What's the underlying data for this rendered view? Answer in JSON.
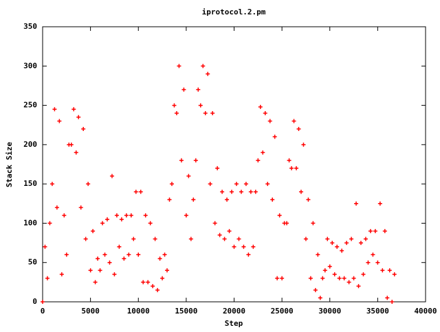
{
  "chart_data": {
    "type": "scatter",
    "title": "iprotocol.2.pm",
    "x_label": "Step",
    "y_label": "Stack Size",
    "xlim": [
      0,
      40000
    ],
    "ylim": [
      0,
      350
    ],
    "xticks": [
      0,
      5000,
      10000,
      15000,
      20000,
      25000,
      30000,
      35000,
      40000
    ],
    "yticks": [
      0,
      50,
      100,
      150,
      200,
      250,
      300,
      350
    ],
    "color": "#ff0000",
    "x": [
      0,
      250,
      500,
      750,
      1000,
      1250,
      1500,
      1750,
      2000,
      2250,
      2500,
      2750,
      3000,
      3250,
      3500,
      3750,
      4000,
      4250,
      4500,
      4750,
      5000,
      5250,
      5500,
      5750,
      6000,
      6250,
      6500,
      6750,
      7000,
      7250,
      7500,
      7750,
      8000,
      8250,
      8500,
      8750,
      9000,
      9250,
      9500,
      9750,
      10000,
      10250,
      10500,
      10750,
      11000,
      11250,
      11500,
      11750,
      12000,
      12250,
      12500,
      12750,
      13000,
      13250,
      13500,
      13750,
      14000,
      14250,
      14500,
      14750,
      15000,
      15250,
      15500,
      15750,
      16000,
      16250,
      16500,
      16750,
      17000,
      17250,
      17500,
      17750,
      18000,
      18250,
      18500,
      18750,
      19000,
      19250,
      19500,
      19750,
      20000,
      20250,
      20500,
      20750,
      21000,
      21250,
      21500,
      21750,
      22000,
      22250,
      22500,
      22750,
      23000,
      23250,
      23500,
      23750,
      24000,
      24250,
      24500,
      24750,
      25000,
      25250,
      25500,
      25750,
      26000,
      26250,
      26500,
      26750,
      27000,
      27250,
      27500,
      27750,
      28000,
      28250,
      28500,
      28750,
      29000,
      29250,
      29500,
      29750,
      30000,
      30250,
      30500,
      30750,
      31000,
      31250,
      31500,
      31750,
      32000,
      32250,
      32500,
      32750,
      33000,
      33250,
      33500,
      33750,
      34000,
      34250,
      34500,
      34750,
      35000,
      35250,
      35500,
      35750,
      36000,
      36250,
      36500,
      36750
    ],
    "y": [
      0,
      70,
      30,
      100,
      150,
      245,
      120,
      230,
      35,
      110,
      60,
      200,
      200,
      245,
      190,
      235,
      120,
      220,
      80,
      150,
      40,
      90,
      25,
      55,
      40,
      100,
      60,
      105,
      50,
      160,
      35,
      110,
      70,
      105,
      55,
      110,
      60,
      110,
      80,
      140,
      60,
      140,
      25,
      110,
      25,
      100,
      20,
      80,
      15,
      55,
      30,
      60,
      40,
      130,
      150,
      250,
      240,
      300,
      180,
      270,
      110,
      160,
      80,
      130,
      180,
      270,
      250,
      300,
      240,
      290,
      150,
      240,
      100,
      170,
      85,
      140,
      80,
      130,
      90,
      140,
      70,
      150,
      80,
      140,
      70,
      150,
      60,
      140,
      70,
      140,
      180,
      248,
      190,
      240,
      150,
      230,
      130,
      210,
      30,
      110,
      30,
      100,
      100,
      180,
      170,
      230,
      170,
      220,
      140,
      200,
      80,
      130,
      30,
      100,
      15,
      60,
      5,
      30,
      40,
      80,
      45,
      75,
      35,
      70,
      30,
      65,
      30,
      75,
      25,
      80,
      30,
      125,
      20,
      75,
      35,
      80,
      50,
      90,
      60,
      90,
      50,
      125,
      40,
      90,
      5,
      40,
      0,
      35
    ]
  }
}
